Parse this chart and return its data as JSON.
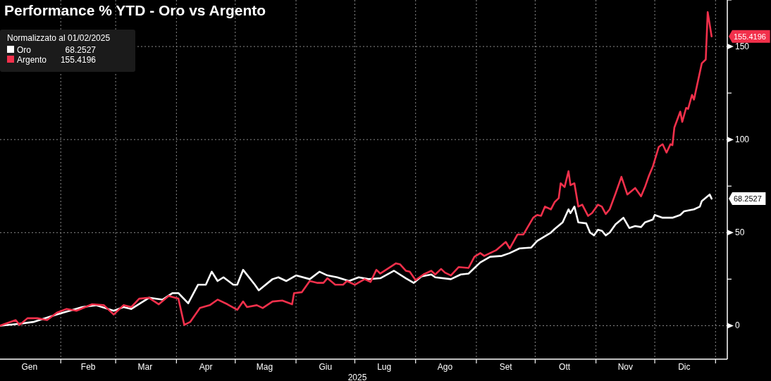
{
  "chart_data": {
    "type": "line",
    "title": "Performance % YTD - Oro vs Argento",
    "xlabel": "2025",
    "legend_title": "Normalizzato al 01/02/2025",
    "xlim": [
      "2025-01-01",
      "2026-01-07"
    ],
    "ylim": [
      -18,
      175
    ],
    "xticks": [
      {
        "value": "2025-01-16",
        "label": "Gen"
      },
      {
        "value": "2025-02-01",
        "label": null
      },
      {
        "value": "2025-02-15",
        "label": "Feb"
      },
      {
        "value": "2025-03-01",
        "label": null
      },
      {
        "value": "2025-03-16",
        "label": "Mar"
      },
      {
        "value": "2025-04-01",
        "label": null
      },
      {
        "value": "2025-04-16",
        "label": "Apr"
      },
      {
        "value": "2025-05-01",
        "label": null
      },
      {
        "value": "2025-05-16",
        "label": "Mag"
      },
      {
        "value": "2025-06-01",
        "label": null
      },
      {
        "value": "2025-06-16",
        "label": "Giu"
      },
      {
        "value": "2025-07-01",
        "label": null
      },
      {
        "value": "2025-07-16",
        "label": "Lug"
      },
      {
        "value": "2025-08-01",
        "label": null
      },
      {
        "value": "2025-08-16",
        "label": "Ago"
      },
      {
        "value": "2025-09-01",
        "label": null
      },
      {
        "value": "2025-09-16",
        "label": "Set"
      },
      {
        "value": "2025-10-01",
        "label": null
      },
      {
        "value": "2025-10-16",
        "label": "Ott"
      },
      {
        "value": "2025-11-01",
        "label": null
      },
      {
        "value": "2025-11-16",
        "label": "Nov"
      },
      {
        "value": "2025-12-01",
        "label": null
      },
      {
        "value": "2025-12-16",
        "label": "Dic"
      },
      {
        "value": "2026-01-01",
        "label": null
      }
    ],
    "yticks": [
      0,
      {
        "value": 25,
        "label": null
      },
      50,
      {
        "value": 75,
        "label": null
      },
      100,
      {
        "value": 125,
        "label": null
      },
      150,
      {
        "value": 175,
        "label": null
      }
    ],
    "grid": true,
    "legend": "top left",
    "marker": "none",
    "line_style": "solid",
    "annotations": [
      "68.2527",
      "155.4196"
    ],
    "series": [
      {
        "name": "Oro",
        "color": "#ffffff",
        "x": [
          "2025-01-01",
          "2025-01-11",
          "2025-01-18",
          "2025-01-30",
          "2025-02-12",
          "2025-02-19",
          "2025-02-28",
          "2025-03-05",
          "2025-03-09",
          "2025-03-18",
          "2025-03-25",
          "2025-03-30",
          "2025-04-02",
          "2025-04-07",
          "2025-04-12",
          "2025-04-16",
          "2025-04-19",
          "2025-04-22",
          "2025-04-25",
          "2025-04-30",
          "2025-05-02",
          "2025-05-05",
          "2025-05-11",
          "2025-05-13",
          "2025-05-20",
          "2025-05-23",
          "2025-05-27",
          "2025-06-01",
          "2025-06-08",
          "2025-06-13",
          "2025-06-17",
          "2025-06-22",
          "2025-06-28",
          "2025-07-03",
          "2025-07-08",
          "2025-07-14",
          "2025-07-21",
          "2025-07-27",
          "2025-07-31",
          "2025-08-04",
          "2025-08-09",
          "2025-08-11",
          "2025-08-19",
          "2025-08-24",
          "2025-08-28",
          "2025-09-03",
          "2025-09-08",
          "2025-09-14",
          "2025-09-18",
          "2025-09-23",
          "2025-09-29",
          "2025-10-02",
          "2025-10-09",
          "2025-10-11",
          "2025-10-15",
          "2025-10-18",
          "2025-10-19",
          "2025-10-21",
          "2025-10-23",
          "2025-10-27",
          "2025-10-29",
          "2025-10-31",
          "2025-11-02",
          "2025-11-04",
          "2025-11-06",
          "2025-11-08",
          "2025-11-11",
          "2025-11-15",
          "2025-11-18",
          "2025-11-21",
          "2025-11-24",
          "2025-11-26",
          "2025-11-30",
          "2025-12-01",
          "2025-12-05",
          "2025-12-10",
          "2025-12-14",
          "2025-12-16",
          "2025-12-21",
          "2025-12-24",
          "2025-12-25",
          "2025-12-29",
          "2025-12-30"
        ],
        "values": [
          0,
          1,
          2,
          6,
          10,
          11,
          8,
          10,
          9,
          15,
          14,
          17.5,
          17.5,
          12,
          22,
          22,
          29,
          24,
          26,
          22,
          22,
          30,
          22,
          19,
          25,
          26,
          24,
          27,
          25,
          29,
          27,
          26,
          24,
          26,
          25,
          25.5,
          29.5,
          25.5,
          23,
          26.5,
          27.5,
          26,
          25,
          27.5,
          28,
          34,
          37,
          37.5,
          39,
          41.5,
          42,
          45.5,
          50,
          52,
          55.5,
          62.5,
          60.5,
          64,
          55.5,
          55,
          50,
          48.5,
          51.5,
          51,
          48.5,
          50,
          54.5,
          58,
          52.5,
          53.5,
          53,
          55.5,
          57,
          59.5,
          58,
          58,
          59.5,
          61.5,
          62.5,
          64,
          67,
          70.5,
          68.2527
        ]
      },
      {
        "name": "Argento",
        "color": "#f2304b",
        "x": [
          "2025-01-01",
          "2025-01-09",
          "2025-01-11",
          "2025-01-15",
          "2025-01-20",
          "2025-01-25",
          "2025-01-30",
          "2025-02-04",
          "2025-02-09",
          "2025-02-17",
          "2025-02-23",
          "2025-02-28",
          "2025-03-05",
          "2025-03-09",
          "2025-03-13",
          "2025-03-18",
          "2025-03-23",
          "2025-03-28",
          "2025-04-02",
          "2025-04-05",
          "2025-04-08",
          "2025-04-13",
          "2025-04-18",
          "2025-04-22",
          "2025-04-27",
          "2025-05-02",
          "2025-05-05",
          "2025-05-07",
          "2025-05-12",
          "2025-05-15",
          "2025-05-20",
          "2025-05-25",
          "2025-05-30",
          "2025-05-31",
          "2025-06-04",
          "2025-06-08",
          "2025-06-12",
          "2025-06-15",
          "2025-06-17",
          "2025-06-21",
          "2025-06-25",
          "2025-06-27",
          "2025-07-01",
          "2025-07-06",
          "2025-07-09",
          "2025-07-12",
          "2025-07-14",
          "2025-07-22",
          "2025-07-24",
          "2025-07-27",
          "2025-07-29",
          "2025-08-01",
          "2025-08-05",
          "2025-08-09",
          "2025-08-11",
          "2025-08-14",
          "2025-08-16",
          "2025-08-19",
          "2025-08-23",
          "2025-08-28",
          "2025-08-31",
          "2025-09-03",
          "2025-09-05",
          "2025-09-11",
          "2025-09-16",
          "2025-09-18",
          "2025-09-22",
          "2025-09-25",
          "2025-09-30",
          "2025-10-02",
          "2025-10-04",
          "2025-10-06",
          "2025-10-09",
          "2025-10-11",
          "2025-10-13",
          "2025-10-14",
          "2025-10-16",
          "2025-10-18",
          "2025-10-19",
          "2025-10-21",
          "2025-10-23",
          "2025-10-25",
          "2025-10-28",
          "2025-10-30",
          "2025-11-02",
          "2025-11-04",
          "2025-11-06",
          "2025-11-08",
          "2025-11-11",
          "2025-11-14",
          "2025-11-17",
          "2025-11-21",
          "2025-11-24",
          "2025-11-26",
          "2025-11-28",
          "2025-11-30",
          "2025-12-03",
          "2025-12-05",
          "2025-12-07",
          "2025-12-09",
          "2025-12-10",
          "2025-12-11",
          "2025-12-14",
          "2025-12-15",
          "2025-12-17",
          "2025-12-18",
          "2025-12-20",
          "2025-12-21",
          "2025-12-25",
          "2025-12-27",
          "2025-12-28",
          "2025-12-30"
        ],
        "values": [
          0,
          3,
          0.4,
          4,
          4,
          3,
          7,
          9,
          8,
          11.5,
          11,
          6,
          11,
          10,
          14.5,
          15,
          11.5,
          16,
          14.5,
          0.4,
          2,
          9.5,
          11,
          14,
          11.5,
          8.5,
          13,
          10,
          11,
          9.5,
          13,
          13.5,
          11.5,
          17.5,
          18,
          24,
          23,
          23,
          25.5,
          22,
          22,
          24,
          22,
          25,
          23.5,
          30,
          28,
          33.5,
          33,
          29.5,
          29,
          24.5,
          27.5,
          29.5,
          27.5,
          30.5,
          28.5,
          27,
          31.5,
          31,
          37,
          39,
          37.5,
          40.5,
          45,
          41.5,
          49,
          49,
          58,
          59.5,
          59,
          64,
          62.5,
          66.5,
          68.5,
          76.5,
          74.5,
          83,
          75.5,
          76.5,
          64,
          65,
          59,
          60.5,
          65,
          64,
          60,
          62.5,
          71,
          80,
          70.5,
          74,
          69.5,
          74.5,
          80.5,
          85.5,
          96,
          97.5,
          93,
          97.5,
          97,
          106.5,
          115,
          109.5,
          117,
          116.5,
          124,
          121.5,
          141,
          143,
          168.5,
          155.4196
        ]
      }
    ]
  }
}
